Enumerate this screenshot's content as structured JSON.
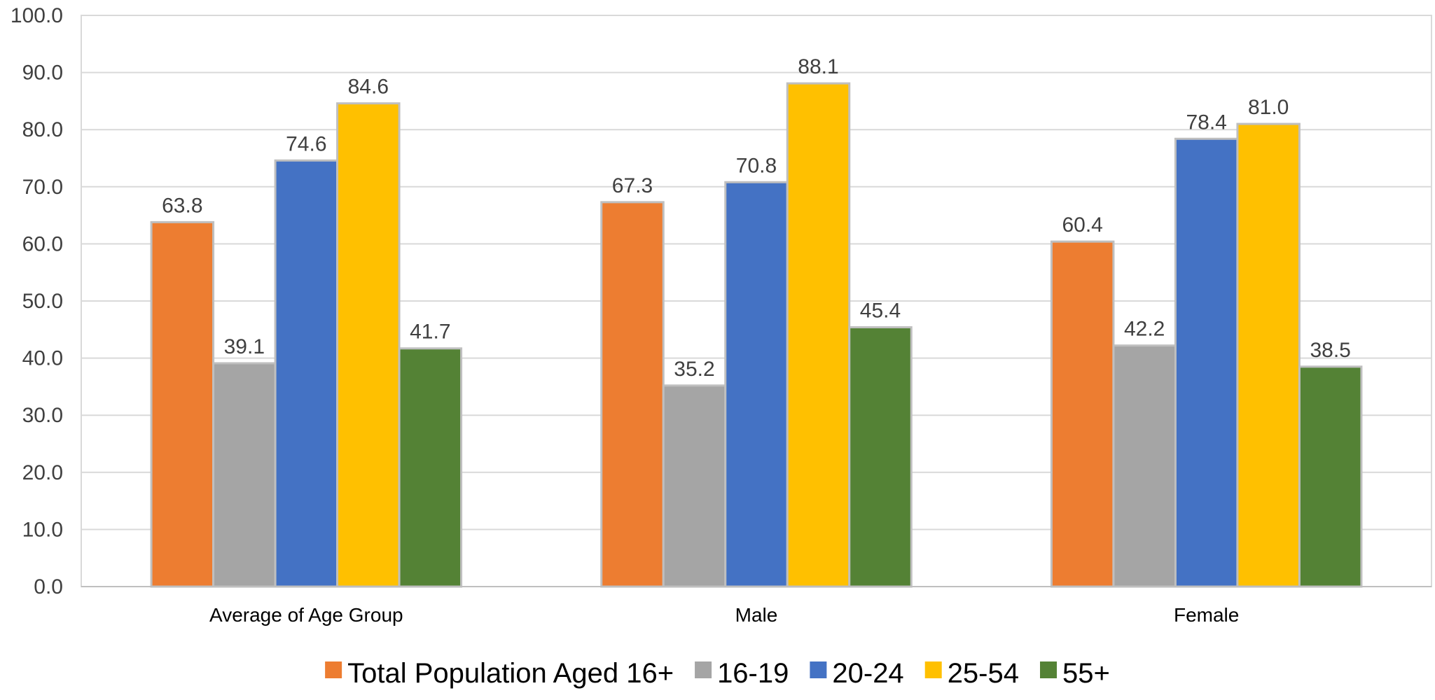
{
  "chart_data": {
    "type": "bar",
    "categories": [
      "Average of Age Group",
      "Male",
      "Female"
    ],
    "series": [
      {
        "name": "Total Population Aged 16+",
        "color": "#ED7D31",
        "values": [
          63.8,
          67.3,
          60.4
        ],
        "labels": [
          "63.8",
          "67.3",
          "60.4"
        ]
      },
      {
        "name": "16-19",
        "color": "#A5A5A5",
        "values": [
          39.1,
          35.2,
          42.2
        ],
        "labels": [
          "39.1",
          "35.2",
          "42.2"
        ]
      },
      {
        "name": "20-24",
        "color": "#4472C4",
        "values": [
          74.6,
          70.8,
          78.4
        ],
        "labels": [
          "74.6",
          "70.8",
          "78.4"
        ]
      },
      {
        "name": "25-54",
        "color": "#FFC000",
        "values": [
          84.6,
          88.1,
          81.0
        ],
        "labels": [
          "84.6",
          "88.1",
          "81.0"
        ]
      },
      {
        "name": "55+",
        "color": "#548235",
        "values": [
          41.7,
          45.4,
          38.5
        ],
        "labels": [
          "41.7",
          "45.4",
          "38.5"
        ]
      }
    ],
    "y_ticks": [
      "0.0",
      "10.0",
      "20.0",
      "30.0",
      "40.0",
      "50.0",
      "60.0",
      "70.0",
      "80.0",
      "90.0",
      "100.0"
    ],
    "ylim": [
      0,
      100
    ],
    "title": "",
    "xlabel": "",
    "ylabel": "",
    "grid": true,
    "legend_position": "bottom",
    "gridline_color": "#D9D9D9",
    "bar_border_color": "#BFBFBF"
  }
}
